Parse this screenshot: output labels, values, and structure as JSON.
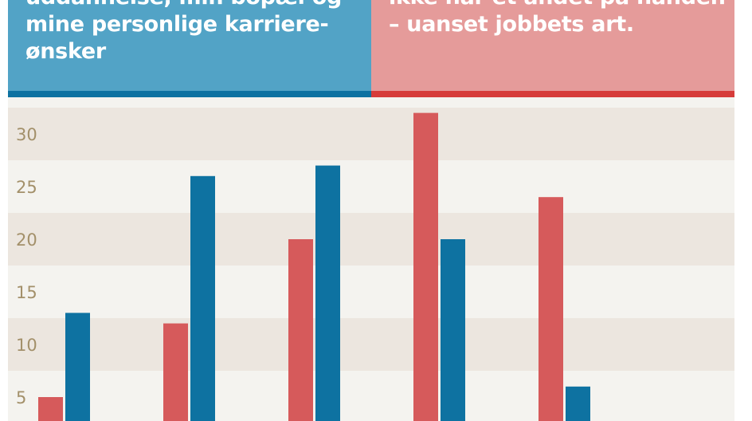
{
  "header": {
    "left_lines": [
      "uddannelse, min bopæl og",
      "mine personlige karriere-",
      "ønsker"
    ],
    "right_lines": [
      "ikke har et andet på hånden",
      "– uanset jobbets art."
    ]
  },
  "colors": {
    "left_header_bg": "#52a3c6",
    "right_header_bg": "#e59b9a",
    "blue_series": "#0e72a1",
    "red_series": "#d65a5b",
    "band_dark": "#ece6df",
    "band_light": "#f4f3ef",
    "tick_text": "#a3906a"
  },
  "chart_data": {
    "type": "bar",
    "grid": "alternating horizontal bands",
    "ylim": [
      0,
      34
    ],
    "yticks": [
      5,
      10,
      15,
      20,
      25,
      30
    ],
    "ytick_labels": [
      "5",
      "10",
      "15",
      "20",
      "25",
      "30"
    ],
    "groups": 5,
    "series": [
      {
        "color": "#d65a5b",
        "values": [
          5,
          12,
          20,
          32,
          24
        ]
      },
      {
        "color": "#0e72a1",
        "values": [
          13,
          26,
          27,
          20,
          6
        ]
      }
    ]
  }
}
